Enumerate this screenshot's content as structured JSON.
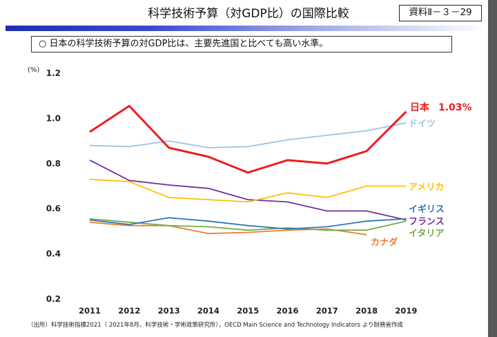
{
  "header": {
    "title": "科学技術予算（対GDP比）の国際比較",
    "doc_id": "資料Ⅱ－３－29"
  },
  "summary": {
    "bullet": "○",
    "text": "日本の科学技術予算の対GDP比は、主要先進国と比べても高い水準。"
  },
  "footer": {
    "source": "（出所）科学技術指標2021（ 2021年8月、科学技術・学術政策研究所），OECD Main Science and Technology Indicators より財務省作成"
  },
  "chart_data": {
    "type": "line",
    "ylabel": "(%)",
    "ylim": [
      0.2,
      1.2
    ],
    "yticks": [
      "0.2",
      "0.4",
      "0.6",
      "0.8",
      "1.0",
      "1.2"
    ],
    "grid": false,
    "categories": [
      "2011",
      "2012",
      "2013",
      "2014",
      "2015",
      "2016",
      "2017",
      "2018",
      "2019"
    ],
    "series": [
      {
        "name": "日本",
        "value_label": "1.03%",
        "color": "#ee1c1c",
        "values": [
          0.94,
          1.055,
          0.87,
          0.83,
          0.76,
          0.815,
          0.8,
          0.855,
          1.03
        ]
      },
      {
        "name": "ドイツ",
        "color": "#9dc3e6",
        "values": [
          0.88,
          0.875,
          0.9,
          0.87,
          0.875,
          0.905,
          0.925,
          0.945,
          0.98
        ]
      },
      {
        "name": "アメリカ",
        "color": "#ffc000",
        "values": [
          0.73,
          0.72,
          0.65,
          0.64,
          0.63,
          0.67,
          0.65,
          0.7,
          0.7
        ]
      },
      {
        "name": "イギリス",
        "color": "#2e75b6",
        "values": [
          0.55,
          0.53,
          0.56,
          0.545,
          0.525,
          0.51,
          0.52,
          0.545,
          0.555
        ]
      },
      {
        "name": "フランス",
        "color": "#7030a0",
        "values": [
          0.815,
          0.725,
          0.705,
          0.69,
          0.64,
          0.63,
          0.59,
          0.59,
          0.55
        ]
      },
      {
        "name": "イタリア",
        "color": "#70ad47",
        "values": [
          0.555,
          0.54,
          0.525,
          0.52,
          0.505,
          0.515,
          0.505,
          0.505,
          0.545
        ]
      },
      {
        "name": "カナダ",
        "color": "#ed7d31",
        "values": [
          0.54,
          0.525,
          0.525,
          0.49,
          0.495,
          0.505,
          0.51,
          0.485,
          null
        ]
      }
    ]
  }
}
